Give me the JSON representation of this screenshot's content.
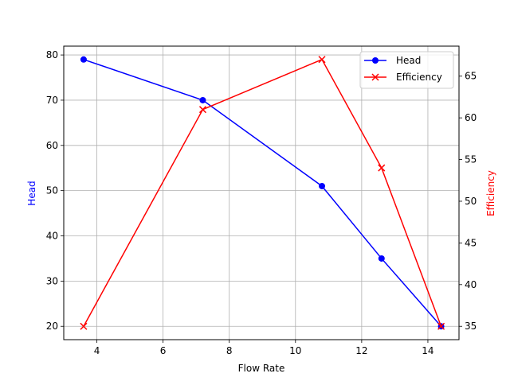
{
  "chart_data": {
    "type": "line",
    "title": "",
    "xlabel": "Flow Rate",
    "ylabel": "Head",
    "y2label": "Efficiency",
    "x": [
      3.6,
      7.2,
      10.8,
      12.6,
      14.4
    ],
    "xlim": [
      3.0,
      14.94
    ],
    "ylim": [
      17.05,
      81.95
    ],
    "y2lim": [
      33.4,
      68.6
    ],
    "xticks": [
      4,
      6,
      8,
      10,
      12,
      14
    ],
    "yticks": [
      20,
      30,
      40,
      50,
      60,
      70,
      80
    ],
    "y2ticks": [
      35,
      40,
      45,
      50,
      55,
      60,
      65
    ],
    "grid": true,
    "legend_position": "upper right",
    "series": [
      {
        "name": "Head",
        "axis": "left",
        "color": "#0000ff",
        "marker": "circle",
        "values": [
          79,
          70,
          51,
          35,
          20
        ]
      },
      {
        "name": "Efficiency",
        "axis": "right",
        "color": "#ff0000",
        "marker": "x",
        "values": [
          35,
          61,
          67,
          54,
          35
        ]
      }
    ]
  }
}
